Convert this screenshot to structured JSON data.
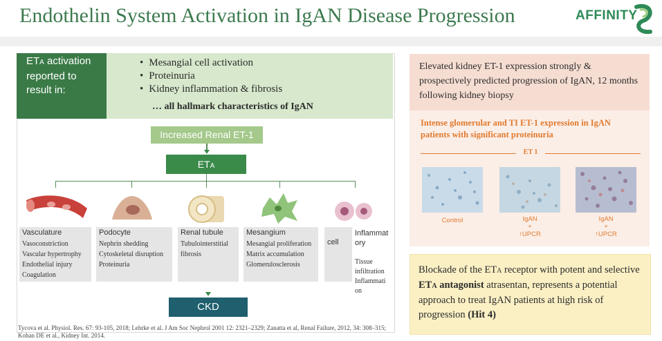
{
  "title": "Endothelin System Activation in IgAN Disease Progression",
  "logo": {
    "text": "AFFINITY"
  },
  "eta_activation": {
    "label_prefix": "ET",
    "label_sub": "A",
    "label_rest": " activation reported to result in:",
    "bullets": [
      "Mesangial cell activation",
      "Proteinuria",
      "Kidney inflammation & fibrosis"
    ],
    "hallmark": "… all hallmark characteristics of IgAN"
  },
  "flow": {
    "renal_et1": "Increased Renal ET-1",
    "eta_main": "ET",
    "eta_sub": "A",
    "ckd": "CKD",
    "categories": [
      {
        "title": "Vasculature",
        "items": [
          "Vasoconstriction",
          "Vascular hypertrophy",
          "Endothelial injury",
          "Coagulation"
        ]
      },
      {
        "title": "Podocyte",
        "items": [
          "Nephrin  shedding",
          "Cytoskeletal  disruption",
          "Proteinuria"
        ]
      },
      {
        "title": "Renal tubule",
        "items": [
          "Tubulointerstitial",
          "fibrosis"
        ]
      },
      {
        "title": "Mesangium",
        "items": [
          "Mesangial  proliferation",
          "Matrix  accumulation",
          "Glomerulosclerosis"
        ]
      },
      {
        "title": "cell",
        "items": []
      },
      {
        "title": "Inflammat ory",
        "items": [
          "Tissue",
          "infiltration",
          "Inflammati",
          "on"
        ]
      }
    ]
  },
  "references": "Tycova et al. Physiol. Res. 67: 93-105, 2018; Lehrke et al. J Am Soc Nephrol 2001 12: 2321–2329; Zanatta et al, Renal Failure,  2012, 34: 308–315; Kohan DE et al., Kidney Int. 2014.",
  "right_panel": {
    "box1": "Elevated kidney ET-1 expression strongly & prospectively predicted progression of IgAN, 12 months following kidney biopsy",
    "box2_head": "Intense glomerular and TI ET-1 expression in IgAN patients with significant proteinuria",
    "et1_label": "ET 1",
    "images": [
      {
        "label": "Control"
      },
      {
        "label": "IgAN\n+\n↑UPCR"
      },
      {
        "label": "IgAN\n+\n↑UPCR"
      }
    ],
    "box3_part1": "Blockade of the ET",
    "box3_sub1": "A",
    "box3_part2": " receptor with potent and selective ",
    "box3_bold1": "ET",
    "box3_boldsub": "A",
    "box3_bold2": " antagonist",
    "box3_part3": " atrasentan, represents a potential approach to treat IgAN patients at high risk of progression ",
    "box3_bold3": "(Hit 4)"
  },
  "colors": {
    "green_dark": "#3a7a47",
    "green_light": "#d7e8cc",
    "ckd": "#1f5f6e",
    "orange": "#e07a2e",
    "peach": "#f6ddd2",
    "yellow": "#fbf0c4"
  }
}
